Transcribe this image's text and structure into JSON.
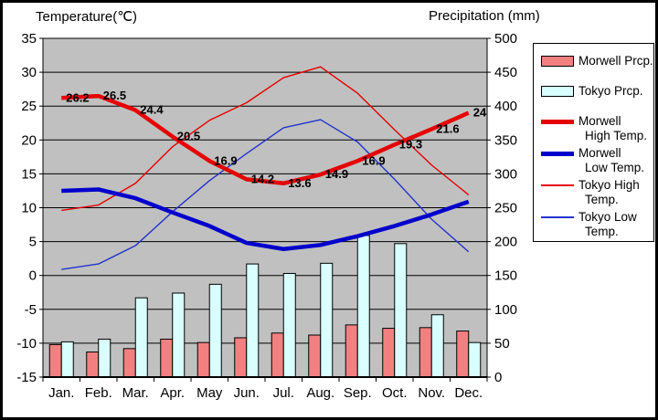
{
  "titles": {
    "left": "Temperature(℃)",
    "right": "Precipitation (mm)"
  },
  "colors": {
    "plot_background": "#c0c0c0",
    "grid": "#000000",
    "morwell_prcp": "#f28080",
    "tokyo_prcp": "#d9ffff",
    "morwell_high": "#e60000",
    "morwell_low": "#0000cc",
    "tokyo_high": "#e60000",
    "tokyo_low": "#2233cc"
  },
  "legend": {
    "items": [
      {
        "key": "morwell-prcp",
        "type": "bar",
        "color": "#f28080",
        "label_line1": "Morwell Prcp."
      },
      {
        "key": "tokyo-prcp",
        "type": "bar",
        "color": "#d9ffff",
        "label_line1": "Tokyo Prcp."
      },
      {
        "key": "morwell-high",
        "type": "thick",
        "color": "#e60000",
        "label_line1": "Morwell",
        "label_line2": "High Temp."
      },
      {
        "key": "morwell-low",
        "type": "thick",
        "color": "#0000cc",
        "label_line1": "Morwell",
        "label_line2": "Low Temp."
      },
      {
        "key": "tokyo-high",
        "type": "thin",
        "color": "#e60000",
        "label_line1": "Tokyo High",
        "label_line2": "Temp."
      },
      {
        "key": "tokyo-low",
        "type": "thin",
        "color": "#2233cc",
        "label_line1": "Tokyo Low",
        "label_line2": "Temp."
      }
    ]
  },
  "chart_data": {
    "type": "bar+line combo climate chart",
    "categories": [
      "Jan.",
      "Feb.",
      "Mar.",
      "Apr.",
      "May",
      "Jun.",
      "Jul.",
      "Aug.",
      "Sep.",
      "Oct.",
      "Nov.",
      "Dec."
    ],
    "left_axis": {
      "title": "Temperature(℃)",
      "ticks": [
        35,
        30,
        25,
        20,
        15,
        10,
        5,
        0,
        -5,
        -10,
        -15
      ],
      "range": [
        -15,
        35
      ]
    },
    "right_axis": {
      "title": "Precipitation (mm)",
      "ticks": [
        500,
        450,
        400,
        350,
        300,
        250,
        200,
        150,
        100,
        50,
        0
      ],
      "range": [
        0,
        500
      ]
    },
    "grid": true,
    "legend_position": "right",
    "series": [
      {
        "name": "Morwell Prcp.",
        "type": "bar",
        "axis": "right",
        "values": [
          48,
          37,
          42,
          56,
          51,
          58,
          65,
          62,
          77,
          72,
          73,
          68
        ]
      },
      {
        "name": "Tokyo Prcp.",
        "type": "bar",
        "axis": "right",
        "values": [
          52,
          56,
          117,
          124,
          137,
          167,
          153,
          168,
          209,
          197,
          92,
          51
        ]
      },
      {
        "name": "Morwell High Temp.",
        "type": "line",
        "weight": "thick",
        "axis": "left",
        "values": [
          26.2,
          26.5,
          24.4,
          20.5,
          16.9,
          14.2,
          13.6,
          14.9,
          16.9,
          19.3,
          21.6,
          24
        ],
        "point_labels": [
          "26.2",
          "26.5",
          "24.4",
          "20.5",
          "16.9",
          "14.2",
          "13.6",
          "14.9",
          "16.9",
          "19.3",
          "21.6",
          "24"
        ]
      },
      {
        "name": "Morwell Low Temp.",
        "type": "line",
        "weight": "thick",
        "axis": "left",
        "values": [
          12.5,
          12.7,
          11.4,
          9.3,
          7.3,
          4.8,
          3.9,
          4.5,
          5.8,
          7.3,
          9.0,
          10.9
        ]
      },
      {
        "name": "Tokyo High Temp.",
        "type": "line",
        "weight": "thin",
        "axis": "left",
        "values": [
          9.6,
          10.4,
          13.6,
          19.0,
          22.9,
          25.5,
          29.2,
          30.8,
          26.9,
          21.5,
          16.3,
          11.9
        ]
      },
      {
        "name": "Tokyo Low Temp.",
        "type": "line",
        "weight": "thin",
        "axis": "left",
        "values": [
          0.9,
          1.7,
          4.4,
          9.4,
          14.0,
          18.0,
          21.8,
          23.0,
          19.7,
          14.2,
          8.3,
          3.5
        ]
      }
    ]
  }
}
